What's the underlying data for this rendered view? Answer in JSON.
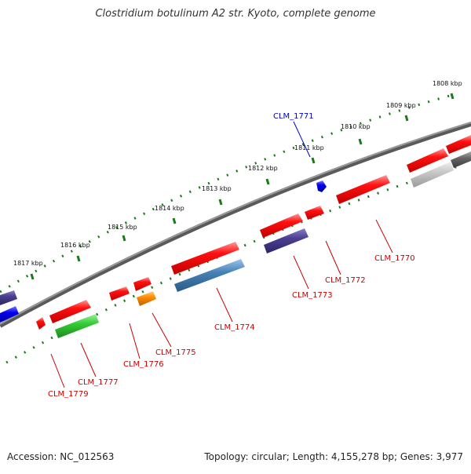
{
  "title": "Clostridium botulinum A2 str. Kyoto, complete genome",
  "accession": "Accession: NC_012563",
  "summary": "Topology: circular; Length: 4,155,278 bp; Genes: 3,977",
  "colors": {
    "forward": "#ff0000",
    "reverse_label": "#cc0000",
    "highlight": "#0000cc",
    "backbone": "#777777",
    "ticks": "#1a7a1a"
  },
  "ticks": [
    "1808 kbp",
    "1809 kbp",
    "1810 kbp",
    "1811 kbp",
    "1812 kbp",
    "1813 kbp",
    "1814 kbp",
    "1815 kbp",
    "1816 kbp",
    "1817 kbp"
  ],
  "genes": [
    {
      "id": "CLM_1770",
      "color": "#cc0000"
    },
    {
      "id": "CLM_1771",
      "color": "#0000cc"
    },
    {
      "id": "CLM_1772",
      "color": "#cc0000"
    },
    {
      "id": "CLM_1773",
      "color": "#cc0000"
    },
    {
      "id": "CLM_1774",
      "color": "#cc0000"
    },
    {
      "id": "CLM_1775",
      "color": "#cc0000"
    },
    {
      "id": "CLM_1776",
      "color": "#cc0000"
    },
    {
      "id": "CLM_1777",
      "color": "#cc0000"
    },
    {
      "id": "CLM_1779",
      "color": "#cc0000"
    }
  ]
}
